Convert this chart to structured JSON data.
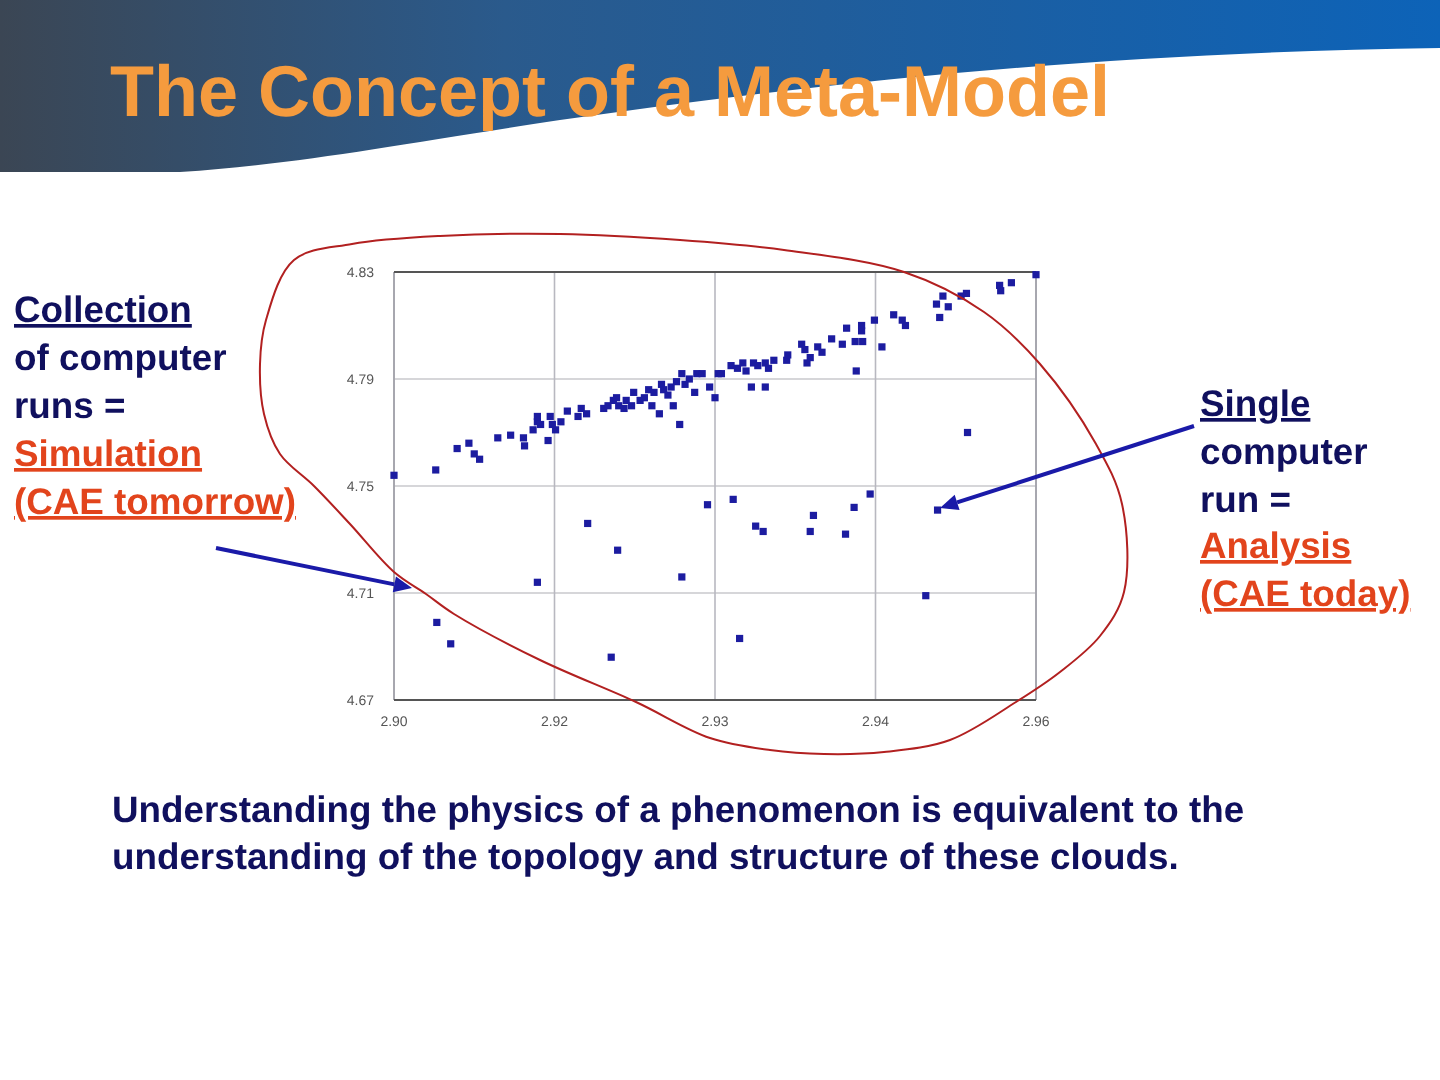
{
  "chart_data": {
    "type": "scatter",
    "title": "The Concept of a Meta-Model",
    "annotations": [
      "Collection of computer runs =",
      "Simulation (CAE tomorrow)",
      "Single computer run =",
      "Analysis (CAE today)",
      "Understanding the physics of a phenomenon is equivalent to the understanding of the topology and structure of these clouds."
    ],
    "x": [
      2.9,
      2.9039,
      2.9059,
      2.907,
      2.9075,
      2.908,
      2.9097,
      2.9109,
      2.9121,
      2.9122,
      2.913,
      2.9134,
      2.9134,
      2.9137,
      2.9144,
      2.9146,
      2.9148,
      2.9151,
      2.9156,
      2.9162,
      2.9172,
      2.9175,
      2.918,
      2.9196,
      2.92,
      2.9205,
      2.9208,
      2.921,
      2.9215,
      2.9217,
      2.9222,
      2.9224,
      2.923,
      2.9234,
      2.9238,
      2.9241,
      2.9243,
      2.9248,
      2.925,
      2.9252,
      2.9256,
      2.9259,
      2.9261,
      2.9264,
      2.9267,
      2.9269,
      2.9272,
      2.9276,
      2.9281,
      2.9283,
      2.9288,
      2.9295,
      2.93,
      2.9303,
      2.9306,
      2.9315,
      2.9321,
      2.9326,
      2.9329,
      2.9336,
      2.934,
      2.9347,
      2.935,
      2.9355,
      2.9367,
      2.9368,
      2.9381,
      2.9384,
      2.9386,
      2.9389,
      2.9396,
      2.94,
      2.9409,
      2.9419,
      2.9423,
      2.9431,
      2.9437,
      2.9437,
      2.9438,
      2.9432,
      2.9449,
      2.9456,
      2.9467,
      2.9475,
      2.9478,
      2.9507,
      2.951,
      2.9513,
      2.9518,
      2.953,
      2.9535,
      2.9566,
      2.9567,
      2.9577,
      2.96,
      2.9334,
      2.9347,
      2.9536,
      2.9181,
      2.9209,
      2.9134,
      2.9269,
      2.9293,
      2.904,
      2.9053,
      2.9203,
      2.9317,
      2.9338,
      2.9345,
      2.9392,
      2.9389,
      2.943,
      2.9445,
      2.9422,
      2.9508,
      2.9497,
      2.9323
    ],
    "values": [
      4.754,
      4.756,
      4.764,
      4.766,
      4.762,
      4.76,
      4.768,
      4.769,
      4.768,
      4.765,
      4.771,
      4.774,
      4.776,
      4.773,
      4.767,
      4.776,
      4.773,
      4.771,
      4.774,
      4.778,
      4.776,
      4.779,
      4.777,
      4.779,
      4.78,
      4.782,
      4.783,
      4.78,
      4.779,
      4.782,
      4.78,
      4.785,
      4.782,
      4.783,
      4.786,
      4.78,
      4.785,
      4.777,
      4.788,
      4.786,
      4.784,
      4.787,
      4.78,
      4.789,
      4.773,
      4.792,
      4.788,
      4.79,
      4.785,
      4.792,
      4.792,
      4.787,
      4.783,
      4.792,
      4.792,
      4.795,
      4.794,
      4.796,
      4.793,
      4.796,
      4.795,
      4.796,
      4.794,
      4.797,
      4.797,
      4.799,
      4.803,
      4.801,
      4.796,
      4.798,
      4.802,
      4.8,
      4.805,
      4.803,
      4.809,
      4.804,
      4.81,
      4.808,
      4.804,
      4.793,
      4.812,
      4.802,
      4.814,
      4.812,
      4.81,
      4.818,
      4.813,
      4.821,
      4.817,
      4.821,
      4.822,
      4.825,
      4.823,
      4.826,
      4.829,
      4.787,
      4.787,
      4.77,
      4.736,
      4.726,
      4.714,
      4.716,
      4.743,
      4.699,
      4.691,
      4.686,
      4.745,
      4.735,
      4.733,
      4.739,
      4.733,
      4.742,
      4.747,
      4.732,
      4.741,
      4.709,
      4.693
    ],
    "color": "#1c1ca0",
    "marker": "square",
    "xlim": [
      2.9,
      2.96
    ],
    "xticks": [
      {
        "value": 2.9,
        "label": "2.90"
      },
      {
        "value": 2.915,
        "label": "2.92"
      },
      2.93,
      {
        "value": 2.945,
        "label": "2.94"
      },
      2.96
    ],
    "ylim": [
      4.67,
      4.83
    ],
    "yticks": [
      4.67,
      4.71,
      4.75,
      4.79,
      4.83
    ],
    "grid": true
  }
}
